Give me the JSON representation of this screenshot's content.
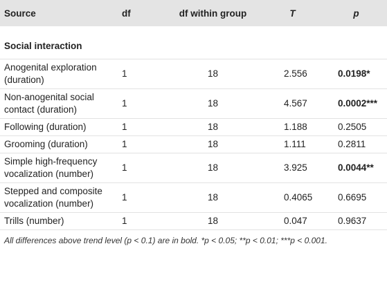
{
  "table": {
    "header": [
      "Source",
      "df",
      "df within group",
      "T",
      "p"
    ],
    "section": "Social interaction",
    "rows": [
      [
        "Anogenital exploration (duration)",
        "1",
        "18",
        "2.556",
        "0.0198*"
      ],
      [
        "Non-anogenital social contact (duration)",
        "1",
        "18",
        "4.567",
        "0.0002***"
      ],
      [
        "Following (duration)",
        "1",
        "18",
        "1.188",
        "0.2505"
      ],
      [
        "Grooming (duration)",
        "1",
        "18",
        "1.111",
        "0.2811"
      ],
      [
        "Simple high-frequency vocalization (number)",
        "1",
        "18",
        "3.925",
        "0.0044**"
      ],
      [
        "Stepped and composite vocalization (number)",
        "1",
        "18",
        "0.4065",
        "0.6695"
      ],
      [
        "Trills (number)",
        "1",
        "18",
        "0.047",
        "0.9637"
      ]
    ],
    "footnote": "All differences above trend level (p < 0.1) are in bold. *p < 0.05; **p < 0.01; ***p < 0.001."
  }
}
